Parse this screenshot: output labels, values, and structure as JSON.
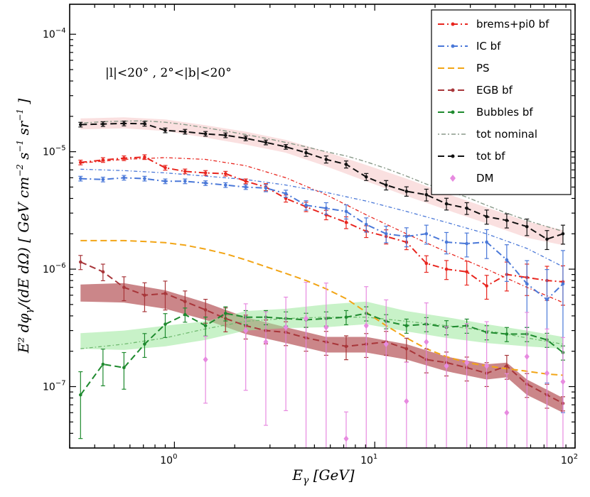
{
  "chart_data": {
    "type": "line",
    "title": "",
    "annotation": "|l|<20° , 2°<|b|<20°",
    "xlabel": "E_γ [GeV]",
    "ylabel": "E² dφ_γ/(dE dΩ)  [ GeV cm⁻² s⁻¹ sr⁻¹ ]",
    "xlabel_parts": {
      "pre": "E",
      "sub": "γ",
      "post": " [GeV]"
    },
    "ylabel_parts": {
      "main": "E² dφ",
      "sub": "γ",
      "mid": "/(dE dΩ)   [ GeV cm",
      "s": " s",
      "sr": " sr",
      "exp2": "−2",
      "exp1": "−1",
      "close": " ]"
    },
    "xscale": "log",
    "yscale": "log",
    "xlim": [
      0.3,
      100
    ],
    "ylim": [
      3e-08,
      0.00018
    ],
    "xticks": [
      {
        "v": 1,
        "base": "10",
        "exp": "0"
      },
      {
        "v": 10,
        "base": "10",
        "exp": "1"
      },
      {
        "v": 100,
        "base": "10",
        "exp": "2"
      }
    ],
    "yticks": [
      {
        "v": 1e-07,
        "base": "10",
        "exp": "−7"
      },
      {
        "v": 1e-06,
        "base": "10",
        "exp": "−6"
      },
      {
        "v": 1e-05,
        "base": "10",
        "exp": "−5"
      },
      {
        "v": 0.0001,
        "base": "10",
        "exp": "−4"
      }
    ],
    "legend_position": "top-right",
    "x_bins": [
      0.34,
      0.44,
      0.56,
      0.71,
      0.9,
      1.13,
      1.43,
      1.8,
      2.27,
      2.86,
      3.6,
      4.54,
      5.72,
      7.2,
      9.07,
      11.4,
      14.4,
      18.1,
      22.8,
      28.8,
      36.2,
      45.6,
      57.5,
      72.4,
      87.0
    ],
    "series": [
      {
        "name": "brems+pi0 bf",
        "color": "#e8251e",
        "style": "dashdot-markers",
        "values": [
          8.1e-06,
          8.5e-06,
          8.8e-06,
          9e-06,
          7.3e-06,
          6.8e-06,
          6.6e-06,
          6.5e-06,
          5.6e-06,
          5e-06,
          4e-06,
          3.4e-06,
          2.9e-06,
          2.5e-06,
          2.1e-06,
          1.9e-06,
          1.7e-06,
          1.12e-06,
          1e-06,
          9.5e-07,
          7.2e-07,
          9e-07,
          8.5e-07,
          8e-07,
          7.8e-07
        ],
        "errors": [
          0.02,
          0.02,
          0.02,
          0.02,
          0.02,
          0.02,
          0.02,
          0.02,
          0.02,
          0.03,
          0.03,
          0.04,
          0.04,
          0.05,
          0.05,
          0.06,
          0.06,
          0.07,
          0.08,
          0.1,
          0.1,
          0.12,
          0.13,
          0.14,
          0.16
        ]
      },
      {
        "name": "IC bf",
        "color": "#4a78d8",
        "style": "dashdot-markers",
        "values": [
          5.9e-06,
          5.8e-06,
          6e-06,
          5.9e-06,
          5.6e-06,
          5.6e-06,
          5.4e-06,
          5.2e-06,
          5e-06,
          4.9e-06,
          4.4e-06,
          3.5e-06,
          3.3e-06,
          3.1e-06,
          2.4e-06,
          2e-06,
          1.9e-06,
          2e-06,
          1.7e-06,
          1.65e-06,
          1.7e-06,
          1.2e-06,
          7.5e-07,
          5.5e-07,
          7.5e-07
        ],
        "errors": [
          0.02,
          0.02,
          0.02,
          0.02,
          0.02,
          0.02,
          0.02,
          0.02,
          0.02,
          0.03,
          0.03,
          0.04,
          0.05,
          0.06,
          0.06,
          0.07,
          0.08,
          0.08,
          0.09,
          0.1,
          0.12,
          0.15,
          0.25,
          0.35,
          0.4
        ]
      },
      {
        "name": "PS",
        "color": "#f2a516",
        "style": "dashed",
        "values": [
          1.75e-06,
          1.75e-06,
          1.75e-06,
          1.72e-06,
          1.68e-06,
          1.6e-06,
          1.48e-06,
          1.35e-06,
          1.2e-06,
          1.05e-06,
          9.2e-07,
          8e-07,
          6.8e-07,
          5.6e-07,
          4.3e-07,
          3.3e-07,
          2.6e-07,
          2.1e-07,
          1.8e-07,
          1.6e-07,
          1.5e-07,
          1.42e-07,
          1.35e-07,
          1.28e-07,
          1.25e-07
        ]
      },
      {
        "name": "EGB bf",
        "color": "#a8363a",
        "style": "dashed-markers",
        "values": [
          1.15e-06,
          9.5e-07,
          7e-07,
          6e-07,
          6.2e-07,
          5.3e-07,
          4.5e-07,
          3.8e-07,
          3.3e-07,
          3e-07,
          2.9e-07,
          2.6e-07,
          2.4e-07,
          2.2e-07,
          2.3e-07,
          2.4e-07,
          2.1e-07,
          1.7e-07,
          1.6e-07,
          1.45e-07,
          1.3e-07,
          1.5e-07,
          1.05e-07,
          8.5e-08,
          7.2e-08
        ],
        "errors": [
          0.06,
          0.07,
          0.1,
          0.12,
          0.12,
          0.1,
          0.1,
          0.1,
          0.1,
          0.1,
          0.1,
          0.1,
          0.1,
          0.1,
          0.1,
          0.1,
          0.1,
          0.1,
          0.1,
          0.1,
          0.1,
          0.1,
          0.1,
          0.1,
          0.06
        ]
      },
      {
        "name": "Bubbles bf",
        "color": "#1e8a2e",
        "style": "dashed-markers",
        "values": [
          8.5e-08,
          1.55e-07,
          1.45e-07,
          2.3e-07,
          3.4e-07,
          4.1e-07,
          3.3e-07,
          4.2e-07,
          3.9e-07,
          3.9e-07,
          3.8e-07,
          3.7e-07,
          3.8e-07,
          3.9e-07,
          4.2e-07,
          3.6e-07,
          3.3e-07,
          3.4e-07,
          3.2e-07,
          3.3e-07,
          2.9e-07,
          2.8e-07,
          2.8e-07,
          2.5e-07,
          1.95e-07
        ],
        "errors": [
          0.25,
          0.15,
          0.15,
          0.1,
          0.1,
          0.06,
          0.08,
          0.06,
          0.06,
          0.06,
          0.06,
          0.06,
          0.06,
          0.06,
          0.06,
          0.06,
          0.06,
          0.06,
          0.06,
          0.06,
          0.06,
          0.06,
          0.06,
          0.06,
          0.06
        ]
      },
      {
        "name": "tot nominal",
        "color": "#8a9a8a",
        "style": "dotted",
        "values": [
          1.75e-05,
          1.8e-05,
          1.82e-05,
          1.83e-05,
          1.78e-05,
          1.7e-05,
          1.6e-05,
          1.5e-05,
          1.4e-05,
          1.3e-05,
          1.2e-05,
          1.1e-05,
          1e-05,
          9.2e-06,
          8.2e-06,
          7.2e-06,
          6.2e-06,
          5.3e-06,
          4.7e-06,
          4.1e-06,
          3.5e-06,
          3e-06,
          2.6e-06,
          2.3e-06,
          2.1e-06
        ]
      },
      {
        "name": "tot bf",
        "color": "#111111",
        "style": "dashed-markers",
        "values": [
          1.7e-05,
          1.72e-05,
          1.74e-05,
          1.73e-05,
          1.52e-05,
          1.48e-05,
          1.42e-05,
          1.38e-05,
          1.3e-05,
          1.2e-05,
          1.1e-05,
          9.8e-06,
          8.6e-06,
          7.8e-06,
          6.1e-06,
          5.2e-06,
          4.6e-06,
          4.3e-06,
          3.6e-06,
          3.3e-06,
          2.8e-06,
          2.6e-06,
          2.3e-06,
          1.8e-06,
          2e-06
        ],
        "errors": [
          0.02,
          0.02,
          0.02,
          0.02,
          0.02,
          0.02,
          0.02,
          0.02,
          0.02,
          0.02,
          0.02,
          0.03,
          0.03,
          0.03,
          0.03,
          0.04,
          0.04,
          0.05,
          0.05,
          0.05,
          0.06,
          0.06,
          0.07,
          0.08,
          0.08
        ]
      },
      {
        "name": "DM",
        "color": "#e78ae0",
        "style": "diamonds",
        "x": [
          1.43,
          2.27,
          2.86,
          3.6,
          4.54,
          5.72,
          7.2,
          9.07,
          11.4,
          14.4,
          18.1,
          22.8,
          28.8,
          36.2,
          45.6,
          57.5,
          72.4,
          87.0
        ],
        "values": [
          1.7e-07,
          3e-07,
          2.4e-07,
          3.2e-07,
          3.8e-07,
          3.2e-07,
          3.6e-08,
          3.3e-07,
          2.3e-07,
          7.5e-08,
          2.4e-07,
          1.5e-07,
          1.6e-07,
          1.5e-07,
          6e-08,
          1.8e-07,
          1.3e-07,
          1.1e-07
        ],
        "errors": [
          0.25,
          0.3,
          0.35,
          0.35,
          0.45,
          0.6,
          0.3,
          0.5,
          0.6,
          0.5,
          0.5,
          0.5,
          0.5,
          0.6,
          0.5,
          0.6,
          0.6,
          0.6
        ]
      }
    ],
    "bands": [
      {
        "name": "tot band",
        "color": "#f6c7c7",
        "opacity": 0.55,
        "x": [
          0.34,
          0.56,
          0.9,
          1.43,
          2.27,
          3.6,
          5.72,
          9.07,
          14.4,
          22.8,
          36.2,
          57.5,
          87.0
        ],
        "lower": [
          1.55e-05,
          1.58e-05,
          1.5e-05,
          1.32e-05,
          1.15e-05,
          9.8e-06,
          7.5e-06,
          5.6e-06,
          4.2e-06,
          3.2e-06,
          2.45e-06,
          1.85e-06,
          1.6e-06
        ],
        "upper": [
          1.92e-05,
          1.96e-05,
          1.88e-05,
          1.68e-05,
          1.48e-05,
          1.26e-05,
          1e-05,
          7.7e-06,
          5.9e-06,
          4.4e-06,
          3.35e-06,
          2.55e-06,
          2.15e-06
        ]
      },
      {
        "name": "EGB band",
        "color": "#a8363a",
        "opacity": 0.6,
        "x": [
          0.34,
          0.56,
          0.9,
          1.43,
          2.27,
          3.6,
          5.72,
          9.07,
          14.4,
          22.8,
          36.2,
          45.6,
          57.5,
          72.4,
          87.0
        ],
        "lower": [
          5.3e-07,
          5.2e-07,
          4.6e-07,
          3.7e-07,
          2.8e-07,
          2.35e-07,
          1.95e-07,
          1.95e-07,
          1.7e-07,
          1.35e-07,
          1.15e-07,
          1.2e-07,
          8.5e-08,
          7e-08,
          6e-08
        ],
        "upper": [
          7.4e-07,
          7.6e-07,
          6.6e-07,
          5.2e-07,
          3.9e-07,
          3.2e-07,
          2.65e-07,
          2.65e-07,
          2.3e-07,
          1.8e-07,
          1.55e-07,
          1.6e-07,
          1.15e-07,
          9.4e-08,
          8e-08
        ]
      },
      {
        "name": "Bubbles band",
        "color": "#9be89b",
        "opacity": 0.55,
        "x": [
          0.34,
          0.56,
          0.9,
          1.43,
          2.27,
          3.6,
          5.72,
          9.07,
          14.4,
          22.8,
          36.2,
          57.5,
          87.0
        ],
        "lower": [
          2.1e-07,
          2.05e-07,
          2.2e-07,
          2.5e-07,
          3e-07,
          3.15e-07,
          3.2e-07,
          3.4e-07,
          2.95e-07,
          2.6e-07,
          2.35e-07,
          2.2e-07,
          2.1e-07
        ],
        "upper": [
          2.85e-07,
          3e-07,
          3.3e-07,
          3.6e-07,
          4.4e-07,
          4.6e-07,
          5e-07,
          5.3e-07,
          4.4e-07,
          3.9e-07,
          3.4e-07,
          3e-07,
          2.65e-07
        ]
      }
    ],
    "nominal_lines": [
      {
        "name": "brems nominal",
        "color": "#e8251e",
        "x": [
          0.34,
          0.56,
          0.9,
          1.43,
          2.27,
          3.6,
          5.72,
          9.07,
          14.4,
          22.8,
          36.2,
          57.5,
          87.0
        ],
        "values": [
          8e-06,
          8.6e-06,
          8.9e-06,
          8.6e-06,
          7.6e-06,
          6e-06,
          4.3e-06,
          2.9e-06,
          2e-06,
          1.4e-06,
          1e-06,
          7e-07,
          5.2e-07
        ]
      },
      {
        "name": "IC nominal",
        "color": "#4a78d8",
        "x": [
          0.34,
          0.56,
          0.9,
          1.43,
          2.27,
          3.6,
          5.72,
          9.07,
          14.4,
          22.8,
          36.2,
          57.5,
          87.0
        ],
        "values": [
          7.1e-06,
          6.9e-06,
          6.6e-06,
          6.2e-06,
          5.8e-06,
          5.2e-06,
          4.5e-06,
          3.8e-06,
          3.1e-06,
          2.5e-06,
          2e-06,
          1.5e-06,
          1.05e-06
        ]
      },
      {
        "name": "Bubbles nominal",
        "color": "#6fba6f",
        "x": [
          0.34,
          0.56,
          0.9,
          1.43,
          2.27,
          3.6,
          5.72,
          9.07,
          14.4,
          22.8,
          36.2,
          57.5,
          87.0
        ],
        "values": [
          2.1e-07,
          2.3e-07,
          2.6e-07,
          3.1e-07,
          3.6e-07,
          3.8e-07,
          3.9e-07,
          3.9e-07,
          3.6e-07,
          3.3e-07,
          3e-07,
          2.6e-07,
          2.3e-07
        ]
      }
    ]
  }
}
